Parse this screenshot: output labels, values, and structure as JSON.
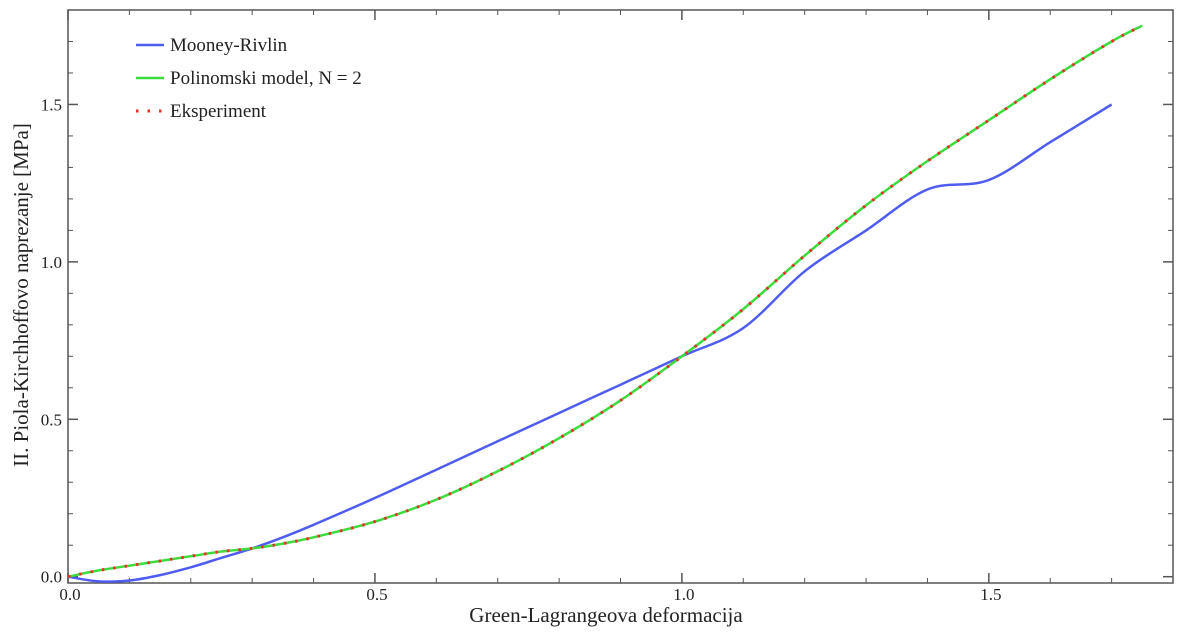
{
  "chart_data": {
    "type": "line",
    "title": "",
    "xlabel": "Green-Lagrangeova deformacija",
    "ylabel": "II. Piola-Kirchhoffovo naprezanje [MPa]",
    "xlim": [
      0.0,
      1.8
    ],
    "ylim": [
      -0.02,
      1.8
    ],
    "xticks": [
      0.0,
      0.5,
      1.0,
      1.5
    ],
    "xtick_labels": [
      "0.0",
      "0.5",
      "1.0",
      "1.5"
    ],
    "yticks": [
      0.0,
      0.5,
      1.0,
      1.5
    ],
    "ytick_labels": [
      "0.0",
      "0.5",
      "1.0",
      "1.5"
    ],
    "grid": false,
    "legend_position": "top-left",
    "series": [
      {
        "name": "Mooney-Rivlin",
        "style": "solid",
        "color": "#4f5cf0",
        "x": [
          0.0,
          0.05,
          0.1,
          0.15,
          0.2,
          0.25,
          0.3,
          0.35,
          0.4,
          0.5,
          0.6,
          0.7,
          0.8,
          0.9,
          1.0,
          1.1,
          1.2,
          1.3,
          1.4,
          1.5,
          1.6,
          1.7
        ],
        "y": [
          0.0,
          -0.015,
          -0.012,
          0.005,
          0.03,
          0.06,
          0.09,
          0.125,
          0.165,
          0.25,
          0.34,
          0.43,
          0.52,
          0.61,
          0.7,
          0.79,
          0.97,
          1.1,
          1.23,
          1.26,
          1.38,
          1.5
        ]
      },
      {
        "name": "Polinomski model, N = 2",
        "style": "solid",
        "color": "#3ddc3d",
        "x": [
          0.0,
          0.05,
          0.1,
          0.15,
          0.2,
          0.25,
          0.3,
          0.35,
          0.4,
          0.5,
          0.6,
          0.7,
          0.8,
          0.9,
          1.0,
          1.1,
          1.2,
          1.3,
          1.4,
          1.5,
          1.6,
          1.7,
          1.75
        ],
        "y": [
          0.0,
          0.02,
          0.035,
          0.05,
          0.065,
          0.08,
          0.09,
          0.105,
          0.125,
          0.175,
          0.245,
          0.335,
          0.44,
          0.56,
          0.7,
          0.85,
          1.02,
          1.18,
          1.32,
          1.45,
          1.58,
          1.7,
          1.75
        ]
      },
      {
        "name": "Eksperiment",
        "style": "dotted",
        "color": "#e8302a",
        "x": [
          0.0,
          0.05,
          0.1,
          0.15,
          0.2,
          0.25,
          0.3,
          0.35,
          0.4,
          0.5,
          0.6,
          0.7,
          0.8,
          0.9,
          1.0,
          1.1,
          1.2,
          1.3,
          1.4,
          1.5,
          1.6,
          1.7,
          1.75
        ],
        "y": [
          0.0,
          0.02,
          0.035,
          0.05,
          0.065,
          0.08,
          0.09,
          0.105,
          0.125,
          0.175,
          0.245,
          0.335,
          0.44,
          0.56,
          0.7,
          0.85,
          1.02,
          1.18,
          1.32,
          1.45,
          1.58,
          1.7,
          1.75
        ]
      }
    ]
  }
}
